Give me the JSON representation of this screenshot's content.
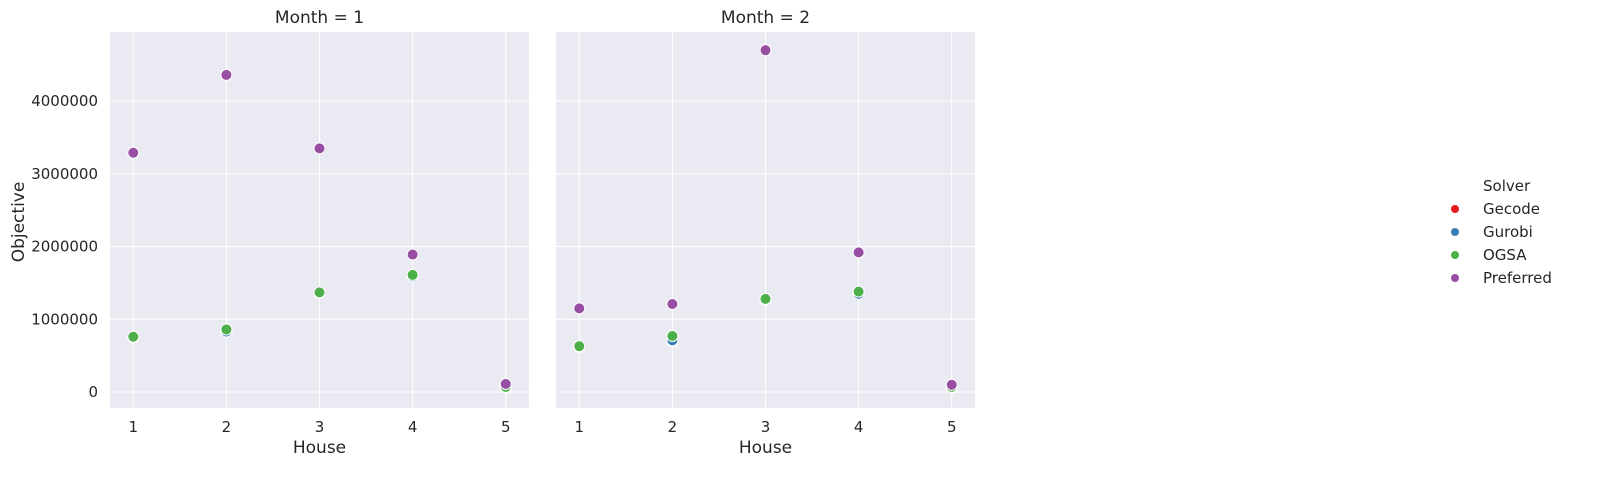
{
  "chart_data": {
    "type": "scatter",
    "ylabel": "Objective",
    "xlabel": "House",
    "x_ticks": [
      1,
      2,
      3,
      4,
      5
    ],
    "y_ticks": [
      0,
      1000000,
      2000000,
      3000000,
      4000000
    ],
    "y_tick_labels": [
      "0",
      "1000000",
      "2000000",
      "3000000",
      "4000000"
    ],
    "xlim": [
      0.75,
      5.25
    ],
    "ylim": [
      -220000,
      4950000
    ],
    "grid": true,
    "legend": {
      "title": "Solver",
      "placement": "right",
      "entries": [
        {
          "name": "Gecode",
          "color": "#E41A1C"
        },
        {
          "name": "Gurobi",
          "color": "#377EB8"
        },
        {
          "name": "OGSA",
          "color": "#4DAF4A"
        },
        {
          "name": "Preferred",
          "color": "#984EA3"
        }
      ]
    },
    "panels": [
      {
        "title": "Month = 1",
        "series": [
          {
            "name": "Gecode",
            "x": [
              1,
              2,
              3,
              4,
              5
            ],
            "y": [
              750000,
              830000,
              1360000,
              1590000,
              60000
            ]
          },
          {
            "name": "Gurobi",
            "x": [
              1,
              2,
              3,
              4,
              5
            ],
            "y": [
              750000,
              830000,
              1360000,
              1590000,
              60000
            ]
          },
          {
            "name": "OGSA",
            "x": [
              1,
              2,
              3,
              4,
              5
            ],
            "y": [
              760000,
              860000,
              1370000,
              1610000,
              70000
            ]
          },
          {
            "name": "Preferred",
            "x": [
              1,
              2,
              3,
              4,
              5
            ],
            "y": [
              3290000,
              4360000,
              3350000,
              1890000,
              110000
            ]
          }
        ]
      },
      {
        "title": "Month = 2",
        "series": [
          {
            "name": "Gecode",
            "x": [
              1,
              2,
              3,
              4,
              5
            ],
            "y": [
              620000,
              700000,
              1270000,
              1350000,
              60000
            ]
          },
          {
            "name": "Gurobi",
            "x": [
              1,
              2,
              3,
              4,
              5
            ],
            "y": [
              620000,
              710000,
              1270000,
              1350000,
              60000
            ]
          },
          {
            "name": "OGSA",
            "x": [
              1,
              2,
              3,
              4,
              5
            ],
            "y": [
              630000,
              770000,
              1280000,
              1380000,
              70000
            ]
          },
          {
            "name": "Preferred",
            "x": [
              1,
              2,
              3,
              4,
              5
            ],
            "y": [
              1150000,
              1210000,
              4700000,
              1920000,
              100000
            ]
          }
        ]
      }
    ]
  }
}
